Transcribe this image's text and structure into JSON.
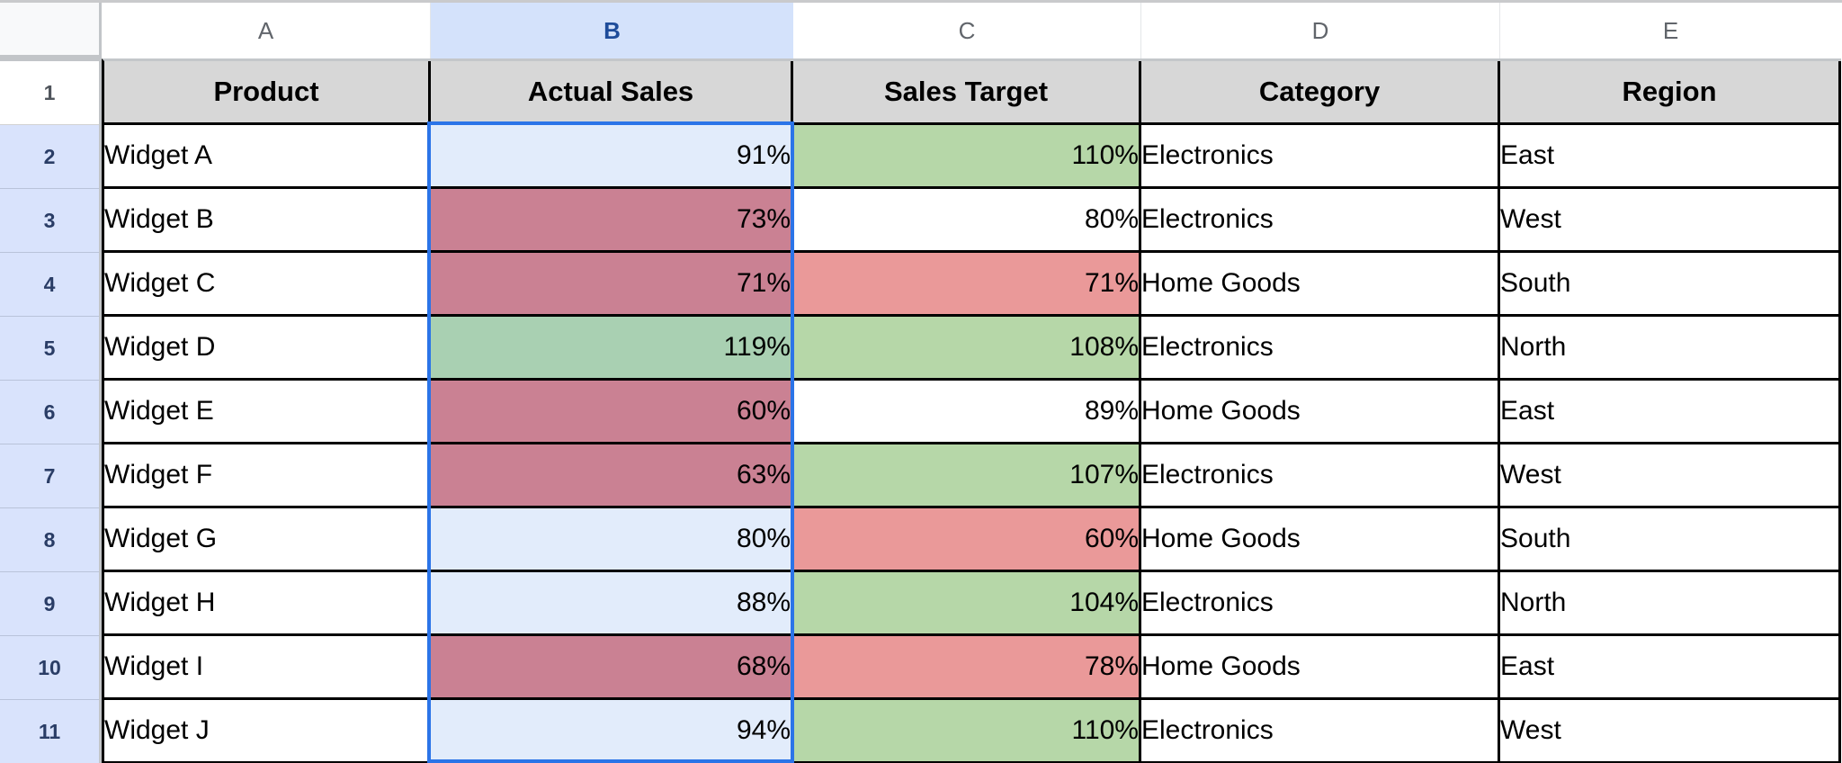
{
  "sheet": {
    "column_letters": [
      "A",
      "B",
      "C",
      "D",
      "E"
    ],
    "row_numbers": [
      "1",
      "2",
      "3",
      "4",
      "5",
      "6",
      "7",
      "8",
      "9",
      "10",
      "11"
    ],
    "selected_column_letter": "B"
  },
  "header_row": {
    "product": "Product",
    "actual": "Actual Sales",
    "target": "Sales Target",
    "category": "Category",
    "region": "Region"
  },
  "rows": [
    {
      "product": "Widget A",
      "actual": "91%",
      "actual_state": "none",
      "target": "110%",
      "target_state": "green",
      "category": "Electronics",
      "region": "East"
    },
    {
      "product": "Widget B",
      "actual": "73%",
      "actual_state": "red",
      "target": "80%",
      "target_state": "none",
      "category": "Electronics",
      "region": "West"
    },
    {
      "product": "Widget C",
      "actual": "71%",
      "actual_state": "red",
      "target": "71%",
      "target_state": "red",
      "category": "Home Goods",
      "region": "South"
    },
    {
      "product": "Widget D",
      "actual": "119%",
      "actual_state": "green",
      "target": "108%",
      "target_state": "green",
      "category": "Electronics",
      "region": "North"
    },
    {
      "product": "Widget E",
      "actual": "60%",
      "actual_state": "red",
      "target": "89%",
      "target_state": "none",
      "category": "Home Goods",
      "region": "East"
    },
    {
      "product": "Widget F",
      "actual": "63%",
      "actual_state": "red",
      "target": "107%",
      "target_state": "green",
      "category": "Electronics",
      "region": "West"
    },
    {
      "product": "Widget G",
      "actual": "80%",
      "actual_state": "none",
      "target": "60%",
      "target_state": "red",
      "category": "Home Goods",
      "region": "South"
    },
    {
      "product": "Widget H",
      "actual": "88%",
      "actual_state": "none",
      "target": "104%",
      "target_state": "green",
      "category": "Electronics",
      "region": "North"
    },
    {
      "product": "Widget I",
      "actual": "68%",
      "actual_state": "red",
      "target": "78%",
      "target_state": "red",
      "category": "Home Goods",
      "region": "East"
    },
    {
      "product": "Widget J",
      "actual": "94%",
      "actual_state": "none",
      "target": "110%",
      "target_state": "green",
      "category": "Electronics",
      "region": "West"
    }
  ],
  "colors": {
    "selection_border": "#2b74e8",
    "selected_column_header_bg": "#d4e2fb",
    "selected_row_header_bg": "#d9e3fc",
    "header_row_bg": "#d7d7d7",
    "target_red": "#ea9999",
    "target_green": "#b6d7a8",
    "actual_red_tinted": "#ca8193",
    "actual_green_tinted": "#a9d0b2",
    "actual_neutral_tinted": "#e2ecfb"
  }
}
